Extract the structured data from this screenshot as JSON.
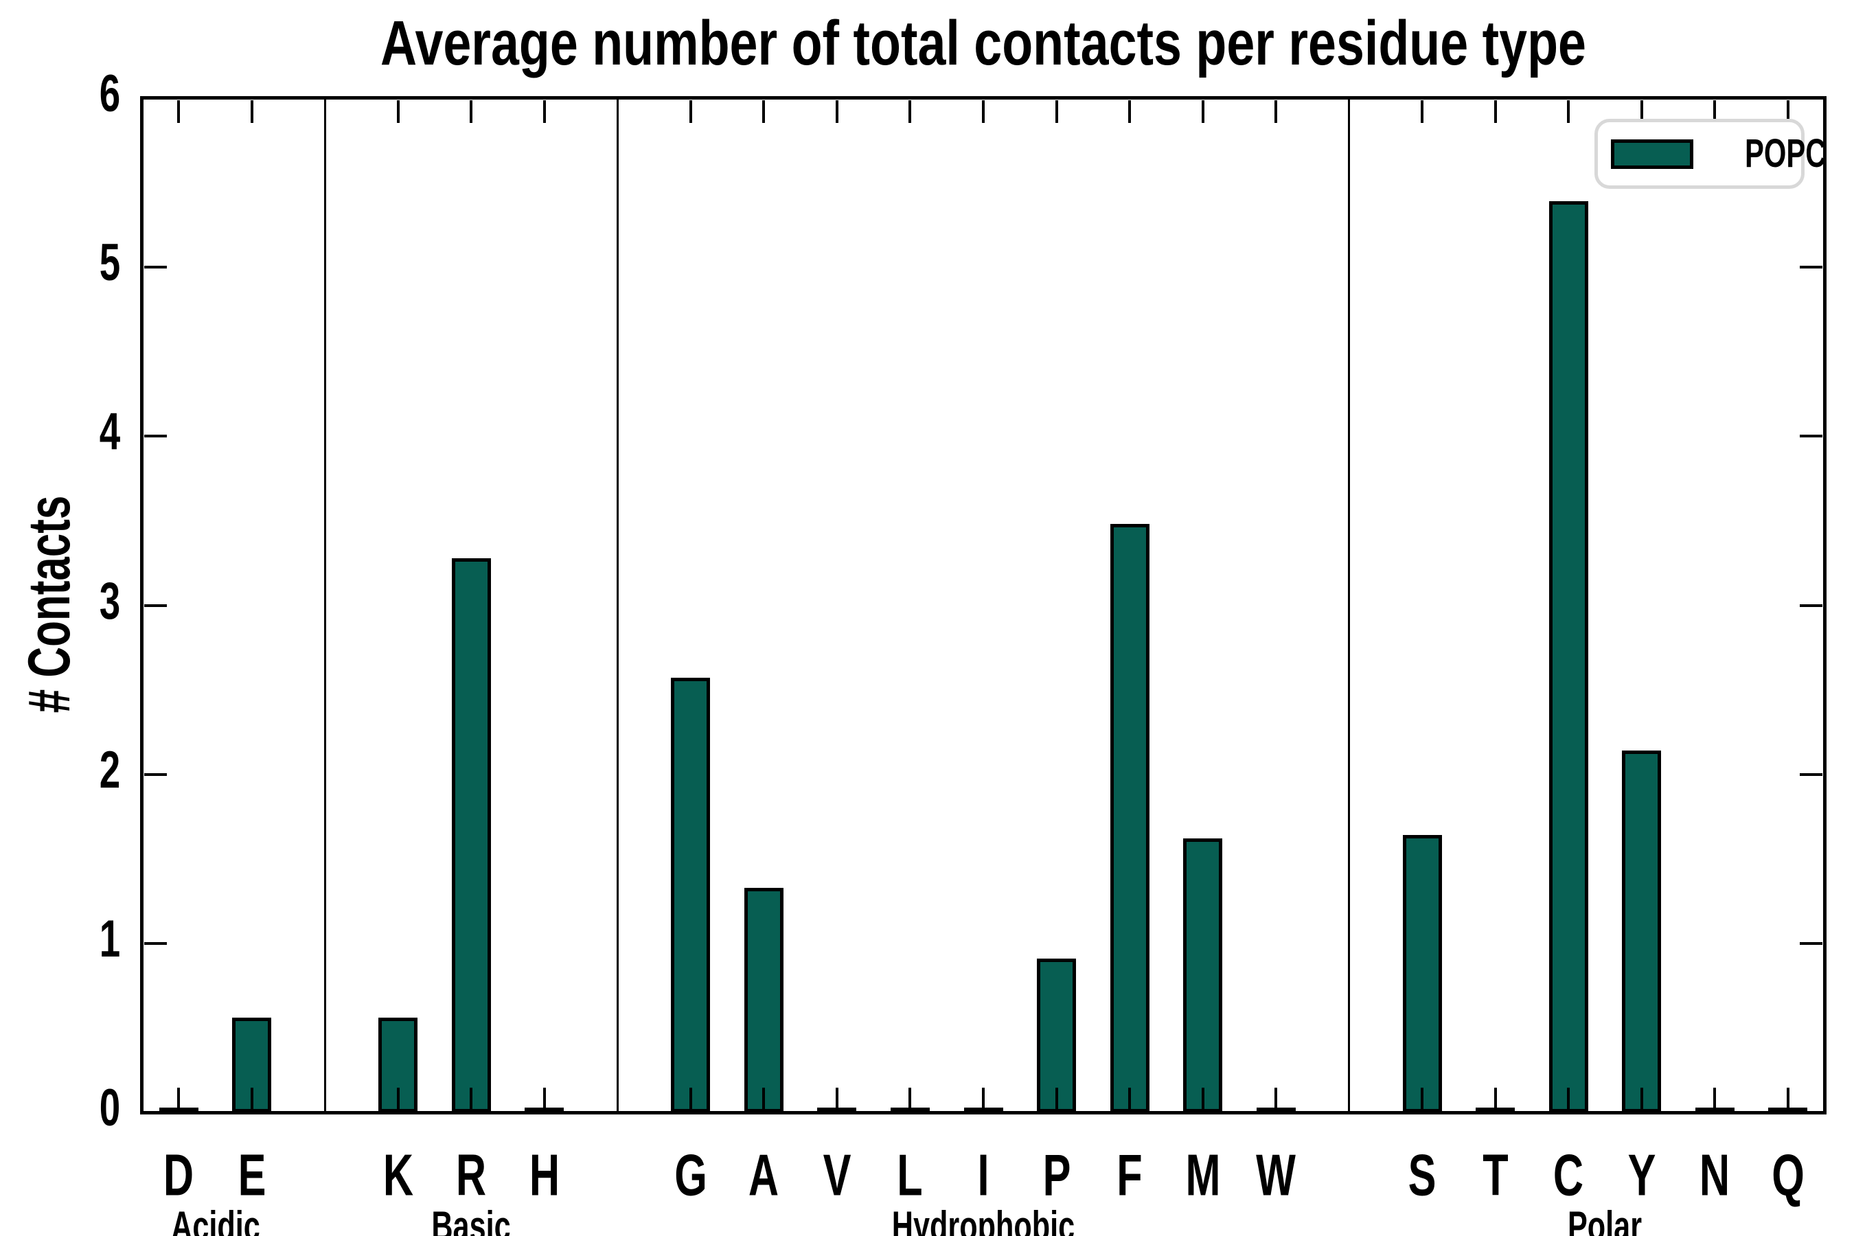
{
  "page": {
    "background": "#ffffff"
  },
  "chart_data": {
    "type": "bar",
    "title": "Average number of total contacts per residue type",
    "ylabel": "# Contacts",
    "xlabel": "",
    "ylim": [
      0,
      6
    ],
    "yticks": [
      0,
      1,
      2,
      3,
      4,
      5,
      6
    ],
    "grid": false,
    "legend": {
      "label": "POPC",
      "position": "upper-right",
      "swatch_color": "#075e52"
    },
    "bar_color": "#075e52",
    "bar_edge_color": "#000000",
    "groups": [
      {
        "label": "Acidic",
        "categories": [
          "D",
          "E"
        ],
        "values": [
          0.0,
          0.56
        ]
      },
      {
        "label": "Basic",
        "categories": [
          "K",
          "R",
          "H"
        ],
        "values": [
          0.56,
          3.28,
          0.0
        ]
      },
      {
        "label": "Hydrophobic",
        "categories": [
          "G",
          "A",
          "V",
          "L",
          "I",
          "P",
          "F",
          "M",
          "W"
        ],
        "values": [
          2.57,
          1.33,
          0.0,
          0.0,
          0.0,
          0.91,
          3.48,
          1.62,
          0.0
        ]
      },
      {
        "label": "Polar",
        "categories": [
          "S",
          "T",
          "C",
          "Y",
          "N",
          "Q"
        ],
        "values": [
          1.64,
          0.0,
          5.39,
          2.14,
          0.0,
          0.0
        ]
      }
    ]
  }
}
